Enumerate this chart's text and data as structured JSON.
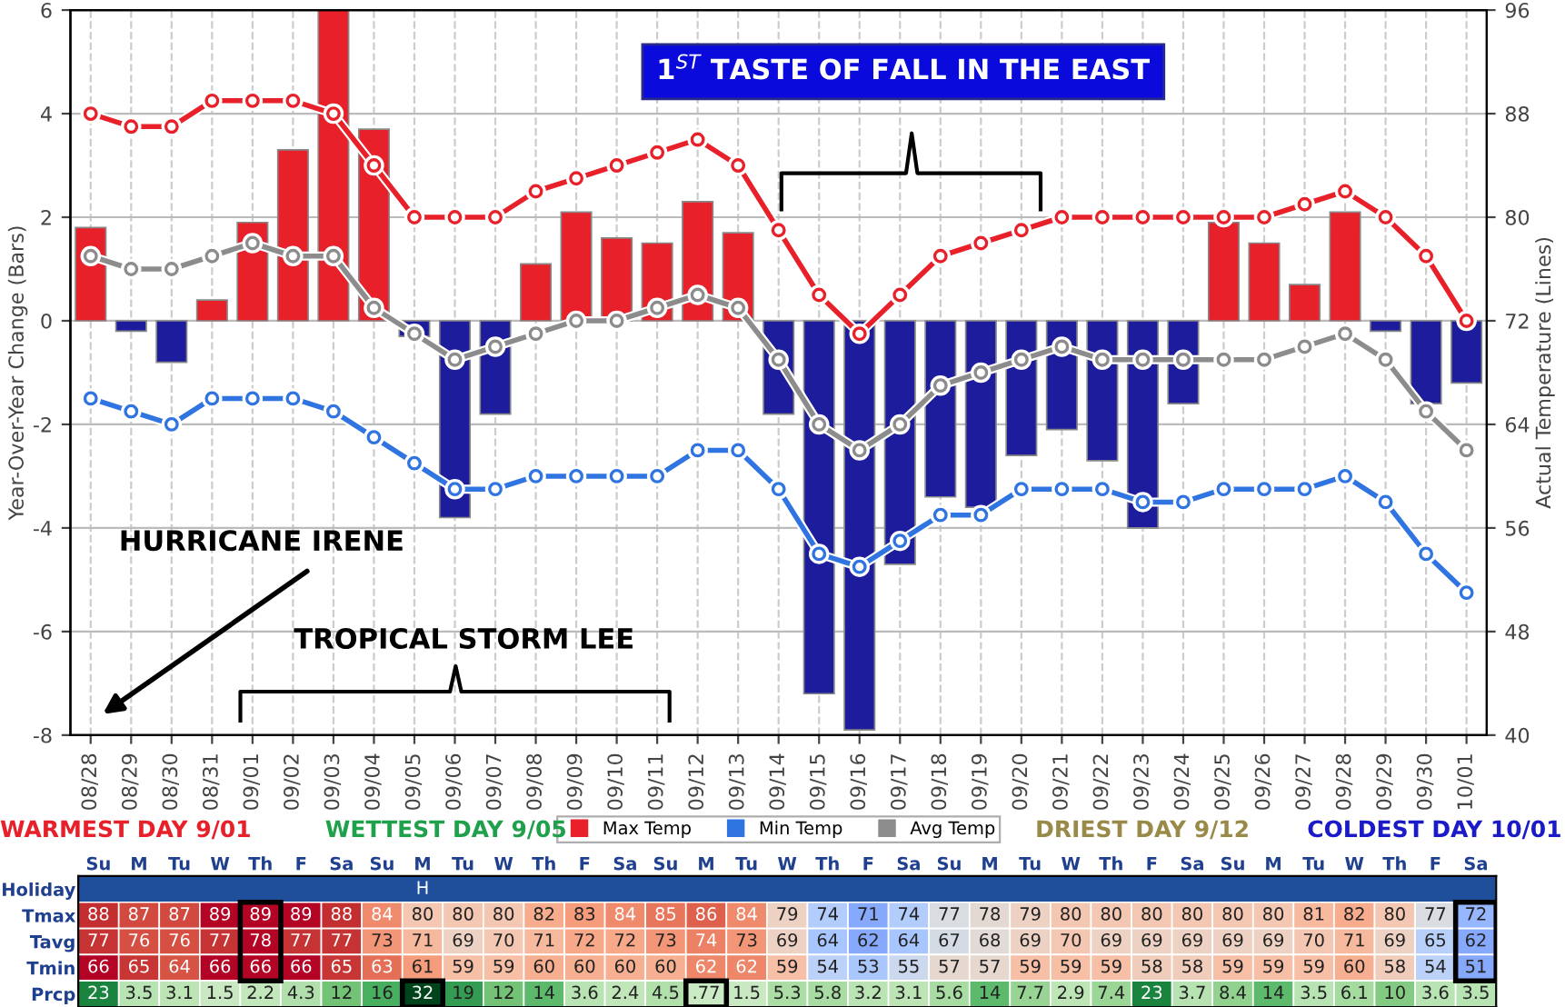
{
  "chart_data": [
    {
      "type": "bar",
      "categories": [
        "08/28",
        "08/29",
        "08/30",
        "08/31",
        "09/01",
        "09/02",
        "09/03",
        "09/04",
        "09/05",
        "09/06",
        "09/07",
        "09/08",
        "09/09",
        "09/10",
        "09/11",
        "09/12",
        "09/13",
        "09/14",
        "09/15",
        "09/16",
        "09/17",
        "09/18",
        "09/19",
        "09/20",
        "09/21",
        "09/22",
        "09/23",
        "09/24",
        "09/25",
        "09/26",
        "09/27",
        "09/28",
        "09/29",
        "09/30",
        "10/01"
      ],
      "ylabel": "Year-Over-Year Change (Bars)",
      "y2label": "Actual Temperature (Lines)",
      "ylim": [
        -8,
        6
      ],
      "yticks": [
        -8,
        -6,
        -4,
        -2,
        0,
        2,
        4,
        6
      ],
      "y2lim": [
        40,
        96
      ],
      "y2ticks": [
        40,
        48,
        56,
        64,
        72,
        80,
        88,
        96
      ],
      "grid": true,
      "legend": "bottom",
      "marker": "circle",
      "series": [
        {
          "type": "bar",
          "colors": [
            "#e8202a",
            "#1c1c9c",
            "#1c1c9c",
            "#e8202a",
            "#e8202a",
            "#e8202a",
            "#e8202a",
            "#e8202a",
            "#1c1c9c",
            "#1c1c9c",
            "#1c1c9c",
            "#e8202a",
            "#e8202a",
            "#e8202a",
            "#e8202a",
            "#e8202a",
            "#e8202a",
            "#1c1c9c",
            "#1c1c9c",
            "#1c1c9c",
            "#1c1c9c",
            "#1c1c9c",
            "#1c1c9c",
            "#1c1c9c",
            "#1c1c9c",
            "#1c1c9c",
            "#1c1c9c",
            "#1c1c9c",
            "#e8202a",
            "#e8202a",
            "#e8202a",
            "#e8202a",
            "#1c1c9c",
            "#1c1c9c",
            "#1c1c9c"
          ],
          "values": [
            1.8,
            -0.2,
            -0.8,
            0.4,
            1.9,
            3.3,
            6.0,
            3.7,
            -0.3,
            -3.8,
            -1.8,
            1.1,
            2.1,
            1.6,
            1.5,
            2.3,
            1.7,
            -1.8,
            -7.2,
            -7.9,
            -4.7,
            -3.4,
            -3.6,
            -2.6,
            -2.1,
            -2.7,
            -4.0,
            -1.6,
            1.9,
            1.5,
            0.7,
            2.1,
            -0.2,
            -1.6,
            -1.2
          ]
        },
        {
          "type": "line",
          "axis": "y2",
          "name": "Max Temp",
          "color": "#e8202a",
          "values": [
            88,
            87,
            87,
            89,
            89,
            89,
            88,
            84,
            80,
            80,
            80,
            82,
            83,
            84,
            85,
            86,
            84,
            79,
            74,
            71,
            74,
            77,
            78,
            79,
            80,
            80,
            80,
            80,
            80,
            80,
            81,
            82,
            80,
            77,
            72
          ]
        },
        {
          "type": "line",
          "axis": "y2",
          "name": "Min Temp",
          "color": "#2f74e0",
          "values": [
            66,
            65,
            64,
            66,
            66,
            66,
            65,
            63,
            61,
            59,
            59,
            60,
            60,
            60,
            60,
            62,
            62,
            59,
            54,
            53,
            55,
            57,
            57,
            59,
            59,
            59,
            58,
            58,
            59,
            59,
            59,
            60,
            58,
            54,
            51
          ]
        },
        {
          "type": "line",
          "axis": "y2",
          "name": "Avg Temp",
          "color": "#8c8c8c",
          "values": [
            77,
            76,
            76,
            77,
            78,
            77,
            77,
            73,
            71,
            69,
            70,
            71,
            72,
            72,
            73,
            74,
            73,
            69,
            64,
            62,
            64,
            67,
            68,
            69,
            70,
            69,
            69,
            69,
            69,
            69,
            70,
            71,
            69,
            65,
            62
          ]
        }
      ],
      "annotations": [
        "1$^{ST}$ TASTE OF FALL IN THE EAST",
        "HURRICANE IRENE",
        "TROPICAL STORM LEE"
      ]
    },
    {
      "type": "heatmap",
      "categories": [
        "Su",
        "M",
        "Tu",
        "W",
        "Th",
        "F",
        "Sa",
        "Su",
        "M",
        "Tu",
        "W",
        "Th",
        "F",
        "Sa",
        "Su",
        "M",
        "Tu",
        "W",
        "Th",
        "F",
        "Sa",
        "Su",
        "M",
        "Tu",
        "W",
        "Th",
        "F",
        "Sa",
        "Su",
        "M",
        "Tu",
        "W",
        "Th",
        "F",
        "Sa"
      ],
      "y_categories": [
        "Holiday",
        "Tmax",
        "Tavg",
        "Tmin",
        "Prcp"
      ],
      "cells": [
        [
          null,
          null,
          null,
          null,
          null,
          null,
          null,
          null,
          null,
          null,
          null,
          null,
          null,
          null,
          null,
          null,
          null,
          null,
          null,
          null,
          null,
          null,
          null,
          null,
          null,
          null,
          null,
          null,
          null,
          null,
          null,
          null,
          null,
          null,
          null
        ],
        [
          88,
          87,
          87,
          89,
          89,
          89,
          88,
          84,
          80,
          80,
          80,
          82,
          83,
          84,
          85,
          86,
          84,
          79,
          74,
          71,
          74,
          77,
          78,
          79,
          80,
          80,
          80,
          80,
          80,
          80,
          81,
          82,
          80,
          77,
          72
        ],
        [
          77,
          76,
          76,
          77,
          78,
          77,
          77,
          73,
          71,
          69,
          70,
          71,
          72,
          72,
          73,
          74,
          73,
          69,
          64,
          62,
          64,
          67,
          68,
          69,
          70,
          69,
          69,
          69,
          69,
          69,
          70,
          71,
          69,
          65,
          62
        ],
        [
          66,
          65,
          64,
          66,
          66,
          66,
          65,
          63,
          61,
          59,
          59,
          60,
          60,
          60,
          60,
          62,
          62,
          59,
          54,
          53,
          55,
          57,
          57,
          59,
          59,
          59,
          58,
          58,
          59,
          59,
          59,
          60,
          58,
          54,
          51
        ],
        [
          23,
          3.5,
          3.1,
          1.5,
          2.2,
          4.3,
          12,
          16,
          32,
          19,
          12,
          14,
          3.6,
          2.4,
          4.5,
          0.77,
          1.5,
          5.3,
          5.8,
          3.2,
          3.1,
          5.6,
          14,
          7.7,
          2.9,
          7.4,
          23,
          3.7,
          8.4,
          14,
          3.5,
          6.1,
          10,
          3.6,
          3.5
        ]
      ],
      "cell_labels": [
        [
          null,
          null,
          null,
          null,
          null,
          null,
          null,
          null,
          "H",
          null,
          null,
          null,
          null,
          null,
          null,
          null,
          null,
          null,
          null,
          null,
          null,
          null,
          null,
          null,
          null,
          null,
          null,
          null,
          null,
          null,
          null,
          null,
          null,
          null,
          null
        ],
        [
          "88",
          "87",
          "87",
          "89",
          "89",
          "89",
          "88",
          "84",
          "80",
          "80",
          "80",
          "82",
          "83",
          "84",
          "85",
          "86",
          "84",
          "79",
          "74",
          "71",
          "74",
          "77",
          "78",
          "79",
          "80",
          "80",
          "80",
          "80",
          "80",
          "80",
          "81",
          "82",
          "80",
          "77",
          "72"
        ],
        [
          "77",
          "76",
          "76",
          "77",
          "78",
          "77",
          "77",
          "73",
          "71",
          "69",
          "70",
          "71",
          "72",
          "72",
          "73",
          "74",
          "73",
          "69",
          "64",
          "62",
          "64",
          "67",
          "68",
          "69",
          "70",
          "69",
          "69",
          "69",
          "69",
          "69",
          "70",
          "71",
          "69",
          "65",
          "62"
        ],
        [
          "66",
          "65",
          "64",
          "66",
          "66",
          "66",
          "65",
          "63",
          "61",
          "59",
          "59",
          "60",
          "60",
          "60",
          "60",
          "62",
          "62",
          "59",
          "54",
          "53",
          "55",
          "57",
          "57",
          "59",
          "59",
          "59",
          "58",
          "58",
          "59",
          "59",
          "59",
          "60",
          "58",
          "54",
          "51"
        ],
        [
          "23",
          "3.5",
          "3.1",
          "1.5",
          "2.2",
          "4.3",
          "12",
          "16",
          "32",
          "19",
          "12",
          "14",
          "3.6",
          "2.4",
          "4.5",
          ".77",
          "1.5",
          "5.3",
          "5.8",
          "3.2",
          "3.1",
          "5.6",
          "14",
          "7.7",
          "2.9",
          "7.4",
          "23",
          "3.7",
          "8.4",
          "14",
          "3.5",
          "6.1",
          "10",
          "3.6",
          "3.5"
        ]
      ],
      "annotations": [
        "WARMEST DAY 9/01",
        "WETTEST DAY 9/05",
        "DRIEST DAY 9/12",
        "COLDEST DAY 10/01"
      ]
    }
  ]
}
